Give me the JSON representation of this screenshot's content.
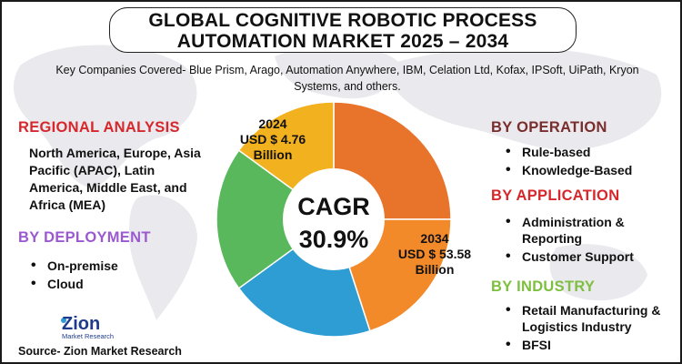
{
  "title": {
    "line1": "GLOBAL COGNITIVE ROBOTIC PROCESS",
    "line2": "AUTOMATION MARKET 2025 – 2034"
  },
  "companies": "Key Companies Covered- Blue Prism, Arago, Automation Anywhere, IBM, Celation Ltd, Kofax, IPSoft, UiPath, Kryon Systems, and others.",
  "regional": {
    "title": "REGIONAL ANALYSIS",
    "text": "North America, Europe, Asia Pacific (APAC), Latin America, Middle East, and Africa (MEA)"
  },
  "deployment": {
    "title": "BY DEPLOYMENT",
    "items": [
      "On-premise",
      "Cloud"
    ]
  },
  "operation": {
    "title": "BY OPERATION",
    "items": [
      "Rule-based",
      "Knowledge-Based"
    ]
  },
  "application": {
    "title": "BY APPLICATION",
    "items": [
      "Administration & Reporting",
      "Customer Support"
    ]
  },
  "industry": {
    "title": "BY INDUSTRY",
    "items": [
      "Retail Manufacturing & Logistics Industry",
      "BFSI"
    ]
  },
  "chart_data": {
    "type": "pie",
    "variant": "donut",
    "slices": [
      {
        "color": "#e8742c",
        "value": 25
      },
      {
        "color": "#f28a2a",
        "value": 20
      },
      {
        "color": "#2e9dd4",
        "value": 20
      },
      {
        "color": "#58b85b",
        "value": 20
      },
      {
        "color": "#f2b21f",
        "value": 15
      }
    ],
    "center_label_1": "CAGR",
    "center_label_2": "30.9%",
    "start_year": "2024",
    "start_value": "USD $ 4.76",
    "start_unit": "Billion",
    "end_year": "2034",
    "end_value": "USD $ 53.58",
    "end_unit": "Billion"
  },
  "logo": {
    "name": "Zion",
    "sub": "Market Research"
  },
  "source": "Source- Zion Market Research",
  "colors": {
    "regional": "#d6282c",
    "deployment": "#9b59d0",
    "operation": "#7a2d2d",
    "application": "#d6282c",
    "industry": "#7fbf3f"
  }
}
